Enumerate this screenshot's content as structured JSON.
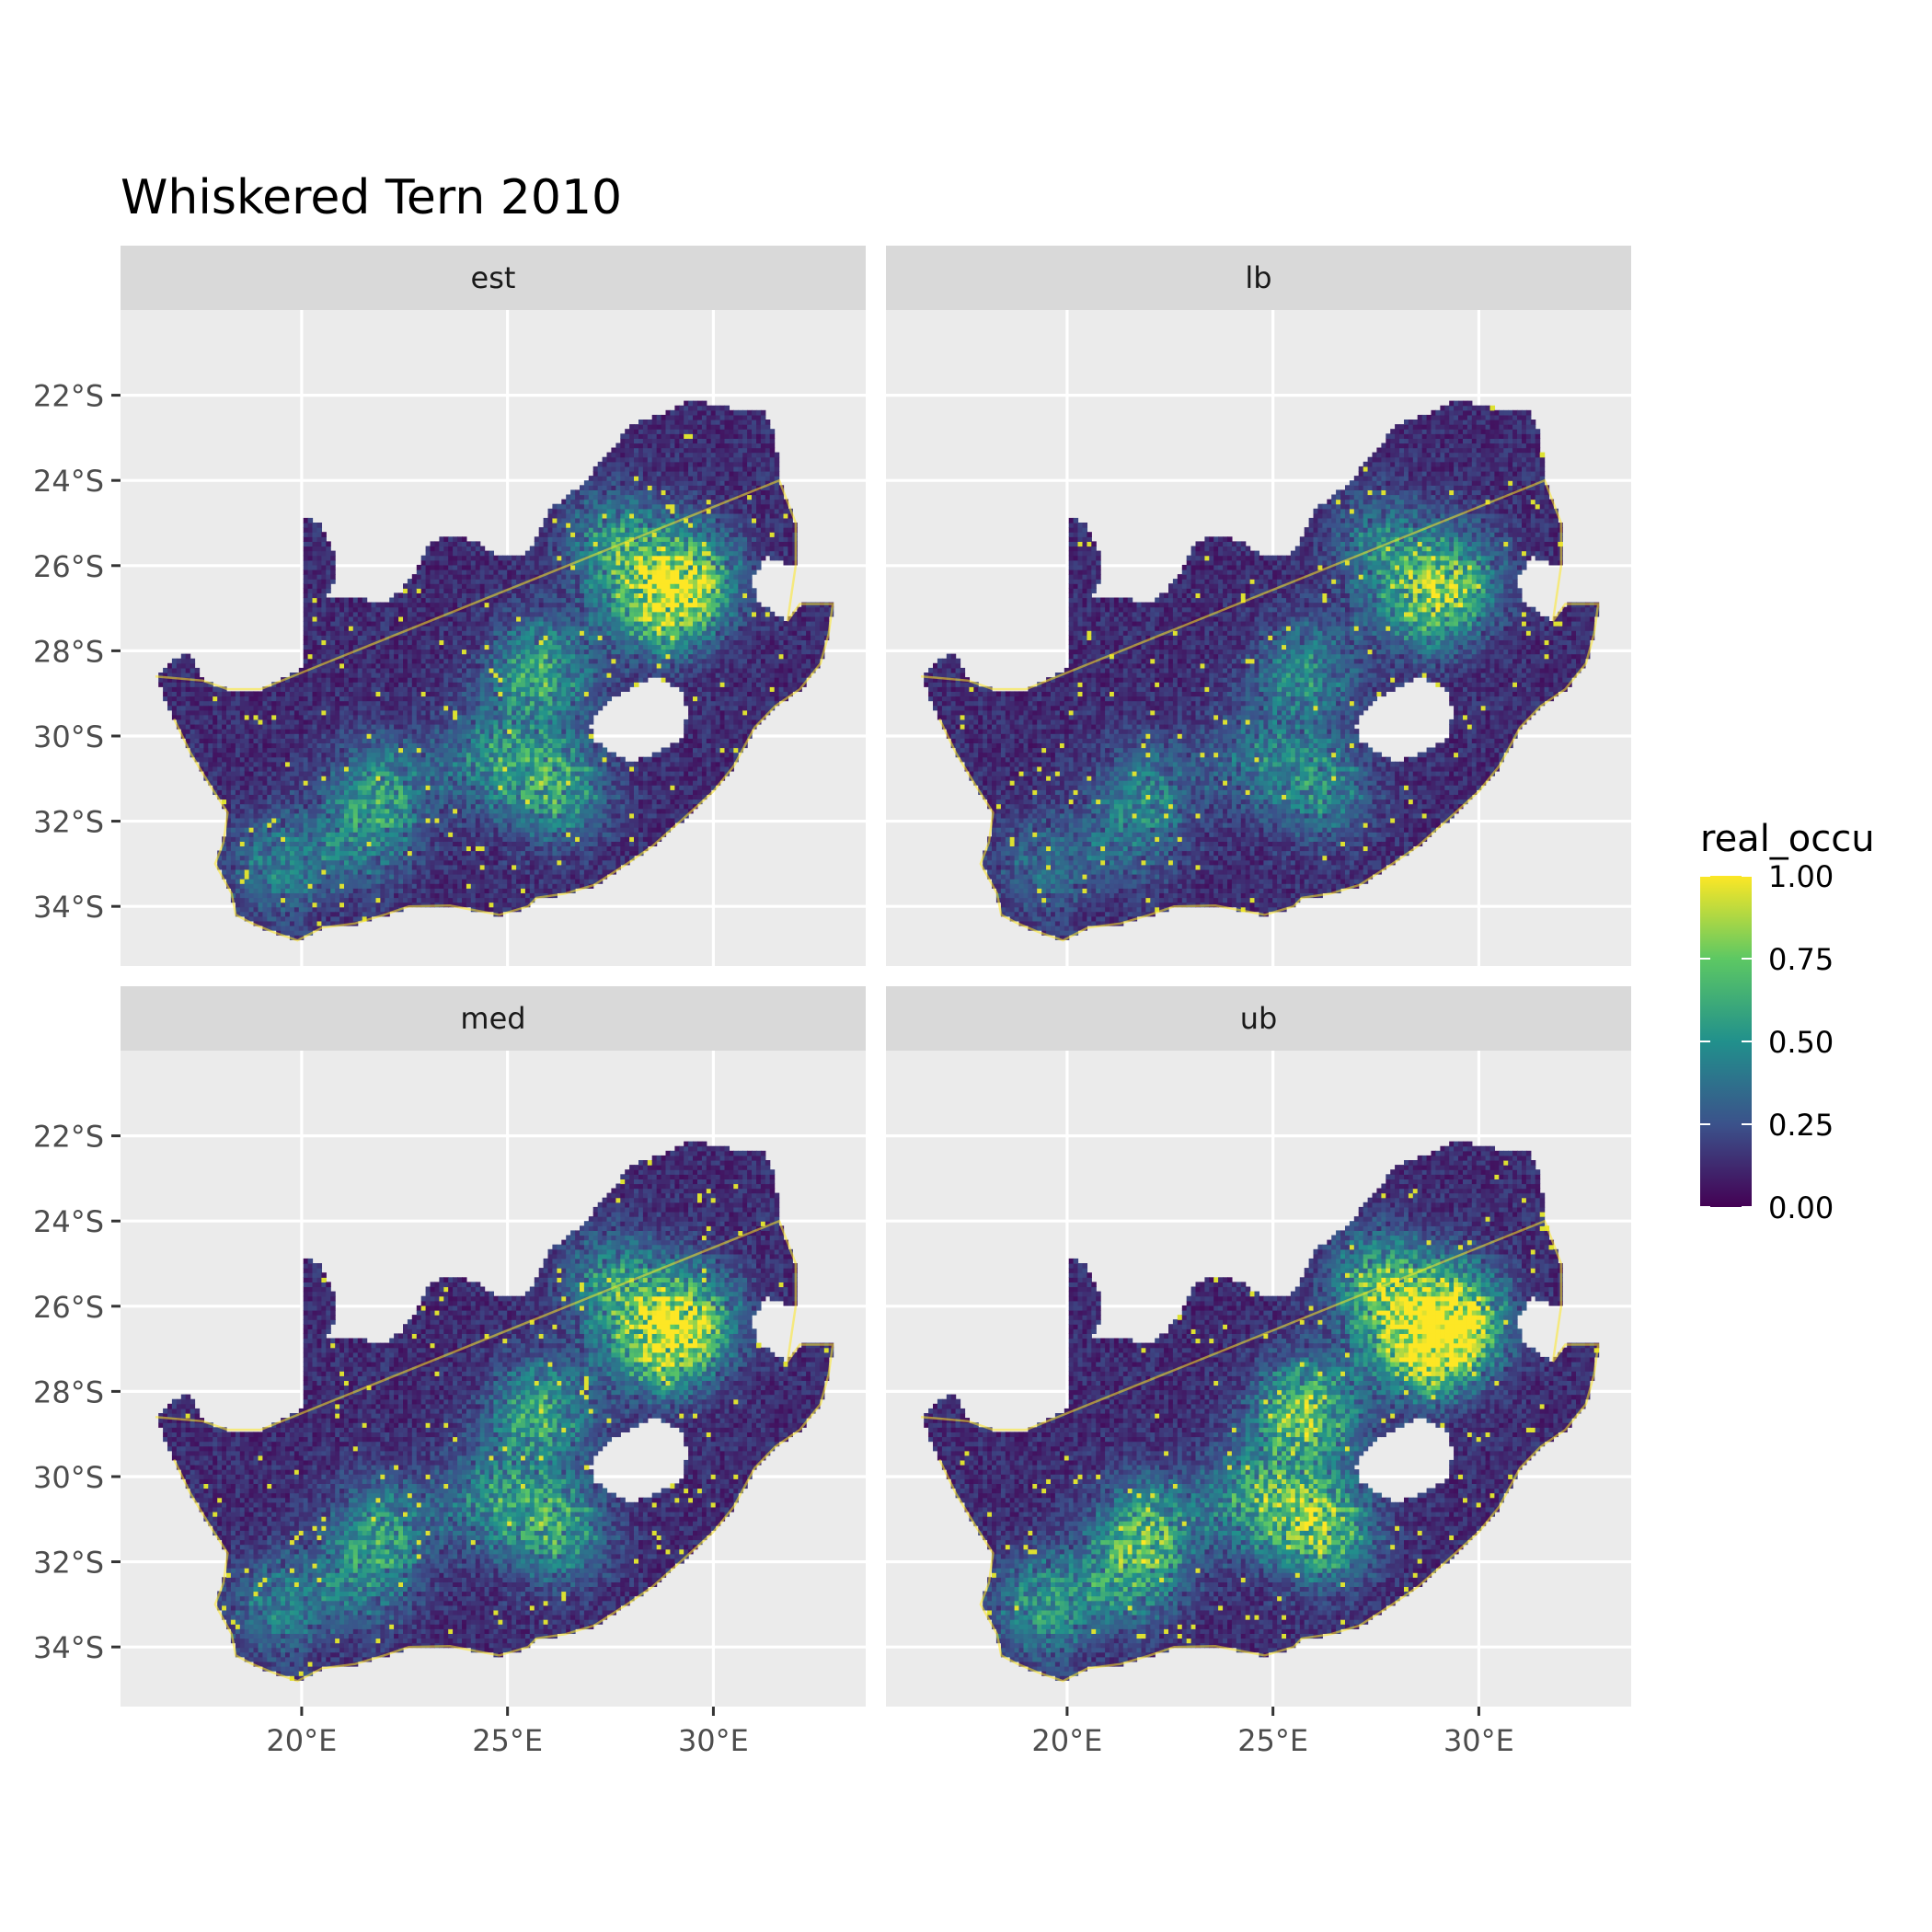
{
  "title": "Whiskered Tern 2010",
  "panels": [
    {
      "label": "est",
      "intensity": 0.55
    },
    {
      "label": "lb",
      "intensity": 0.4
    },
    {
      "label": "med",
      "intensity": 0.55
    },
    {
      "label": "ub",
      "intensity": 0.75
    }
  ],
  "x_axis": {
    "ticks": [
      {
        "value": 20,
        "label": "20°E"
      },
      {
        "value": 25,
        "label": "25°E"
      },
      {
        "value": 30,
        "label": "30°E"
      }
    ],
    "range": [
      15.6,
      33.7
    ]
  },
  "y_axis": {
    "ticks": [
      {
        "value": -22,
        "label": "22°S"
      },
      {
        "value": -24,
        "label": "24°S"
      },
      {
        "value": -26,
        "label": "26°S"
      },
      {
        "value": -28,
        "label": "28°S"
      },
      {
        "value": -30,
        "label": "30°S"
      },
      {
        "value": -32,
        "label": "32°S"
      },
      {
        "value": -34,
        "label": "34°S"
      }
    ],
    "range": [
      -35.4,
      -20.0
    ]
  },
  "legend": {
    "title": "real_occu",
    "placement": "right",
    "ticks": [
      "1.00",
      "0.75",
      "0.50",
      "0.25",
      "0.00"
    ],
    "range": [
      0,
      1
    ],
    "palette": [
      "#440154",
      "#3b528b",
      "#21908c",
      "#5dc863",
      "#fde725"
    ]
  },
  "colors": {
    "panel_bg": "#ebebeb",
    "grid": "#ffffff",
    "strip_bg": "#d9d9d9",
    "lesotho_hole": "#ffffff"
  },
  "chart_data": {
    "type": "heatmap",
    "title": "Whiskered Tern 2010",
    "facets": [
      "est",
      "lb",
      "med",
      "ub"
    ],
    "value_name": "real_occu",
    "value_range": [
      0,
      1
    ],
    "xlim": [
      15.6,
      33.7
    ],
    "ylim": [
      -35.4,
      -20.0
    ],
    "region_outline_lonlat": [
      [
        16.45,
        -28.6
      ],
      [
        16.8,
        -28.3
      ],
      [
        17.2,
        -28.05
      ],
      [
        17.4,
        -28.3
      ],
      [
        17.6,
        -28.7
      ],
      [
        18.2,
        -28.9
      ],
      [
        19.0,
        -28.9
      ],
      [
        19.8,
        -28.5
      ],
      [
        20.0,
        -28.4
      ],
      [
        20.0,
        -24.8
      ],
      [
        20.4,
        -25.0
      ],
      [
        20.8,
        -25.7
      ],
      [
        20.8,
        -26.3
      ],
      [
        20.6,
        -26.8
      ],
      [
        21.5,
        -26.8
      ],
      [
        22.0,
        -26.9
      ],
      [
        22.4,
        -26.6
      ],
      [
        22.8,
        -26.1
      ],
      [
        23.1,
        -25.5
      ],
      [
        23.5,
        -25.3
      ],
      [
        24.2,
        -25.4
      ],
      [
        24.8,
        -25.8
      ],
      [
        25.5,
        -25.7
      ],
      [
        26.0,
        -24.7
      ],
      [
        26.8,
        -24.1
      ],
      [
        27.4,
        -23.4
      ],
      [
        28.0,
        -22.7
      ],
      [
        28.8,
        -22.4
      ],
      [
        29.5,
        -22.1
      ],
      [
        30.4,
        -22.3
      ],
      [
        31.2,
        -22.3
      ],
      [
        31.5,
        -23.0
      ],
      [
        31.6,
        -24.0
      ],
      [
        32.0,
        -25.0
      ],
      [
        32.0,
        -26.0
      ],
      [
        31.3,
        -25.8
      ],
      [
        30.9,
        -26.3
      ],
      [
        31.1,
        -26.9
      ],
      [
        31.8,
        -27.3
      ],
      [
        32.1,
        -26.9
      ],
      [
        32.9,
        -26.9
      ],
      [
        32.8,
        -27.6
      ],
      [
        32.6,
        -28.3
      ],
      [
        32.1,
        -28.9
      ],
      [
        31.5,
        -29.3
      ],
      [
        31.0,
        -29.8
      ],
      [
        30.5,
        -30.7
      ],
      [
        30.0,
        -31.3
      ],
      [
        29.2,
        -32.0
      ],
      [
        28.5,
        -32.6
      ],
      [
        27.9,
        -33.0
      ],
      [
        27.1,
        -33.5
      ],
      [
        26.4,
        -33.7
      ],
      [
        25.7,
        -33.8
      ],
      [
        25.5,
        -34.0
      ],
      [
        24.8,
        -34.2
      ],
      [
        23.6,
        -33.98
      ],
      [
        22.6,
        -34.0
      ],
      [
        22.0,
        -34.2
      ],
      [
        21.3,
        -34.4
      ],
      [
        20.5,
        -34.5
      ],
      [
        19.9,
        -34.8
      ],
      [
        19.3,
        -34.6
      ],
      [
        18.8,
        -34.4
      ],
      [
        18.4,
        -34.2
      ],
      [
        18.3,
        -33.7
      ],
      [
        17.9,
        -33.0
      ],
      [
        18.1,
        -32.5
      ],
      [
        18.2,
        -31.8
      ],
      [
        17.8,
        -31.2
      ],
      [
        17.3,
        -30.4
      ],
      [
        16.9,
        -29.6
      ]
    ],
    "hole_outline_lonlat": [
      [
        27.0,
        -29.7
      ],
      [
        27.4,
        -29.2
      ],
      [
        27.9,
        -28.9
      ],
      [
        28.5,
        -28.6
      ],
      [
        29.2,
        -28.9
      ],
      [
        29.4,
        -29.4
      ],
      [
        29.2,
        -30.1
      ],
      [
        28.6,
        -30.4
      ],
      [
        28.0,
        -30.6
      ],
      [
        27.5,
        -30.4
      ],
      [
        27.1,
        -30.1
      ]
    ],
    "hotspots_lonlat": [
      {
        "lon": 29.4,
        "lat": -26.3,
        "value": 0.9
      },
      {
        "lon": 28.6,
        "lat": -26.9,
        "value": 0.75
      },
      {
        "lon": 25.8,
        "lat": -28.5,
        "value": 0.7
      },
      {
        "lon": 26.2,
        "lat": -31.2,
        "value": 0.7
      },
      {
        "lon": 22.0,
        "lat": -31.2,
        "value": 0.45
      },
      {
        "lon": 19.5,
        "lat": -33.0,
        "value": 0.45
      },
      {
        "lon": 24.6,
        "lat": -30.5,
        "value": 0.5
      },
      {
        "lon": 27.6,
        "lat": -25.5,
        "value": 0.55
      },
      {
        "lon": 21.5,
        "lat": -32.3,
        "value": 0.4
      }
    ]
  }
}
